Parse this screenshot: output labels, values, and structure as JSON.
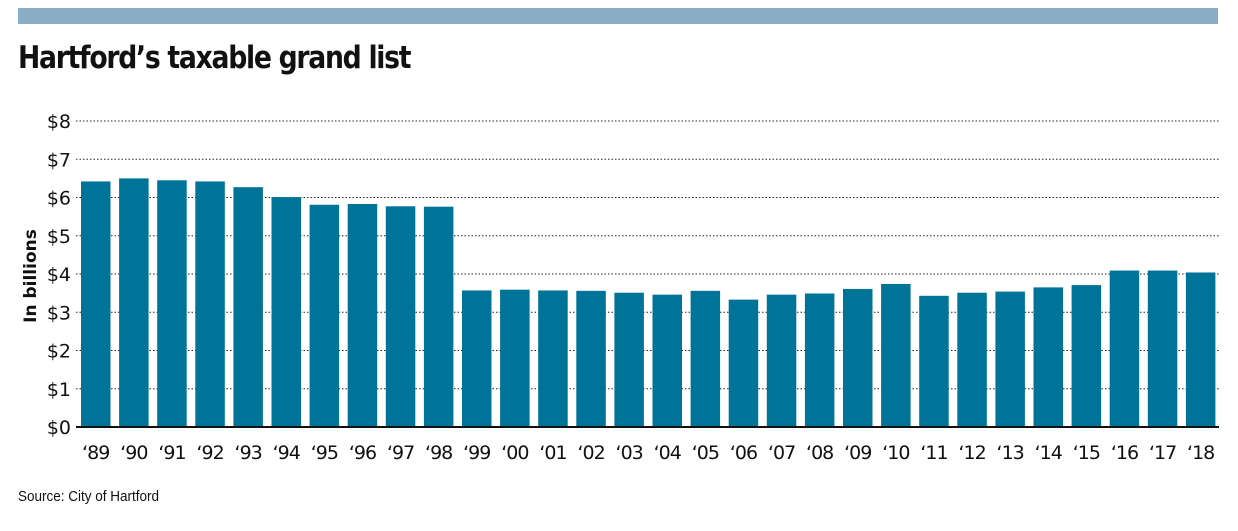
{
  "colors": {
    "top_bar": "#8aaec6",
    "bar": "#007399",
    "text": "#111111",
    "gridline": "#222222"
  },
  "chart_data": {
    "type": "bar",
    "title": "Hartford’s taxable grand list",
    "ylabel": "In billions",
    "xlabel": "",
    "categories": [
      "‘89",
      "‘90",
      "‘91",
      "‘92",
      "‘93",
      "‘94",
      "‘95",
      "‘96",
      "‘97",
      "‘98",
      "‘99",
      "‘00",
      "‘01",
      "‘02",
      "‘03",
      "‘04",
      "‘05",
      "‘06",
      "‘07",
      "‘08",
      "‘09",
      "‘10",
      "‘11",
      "‘12",
      "‘13",
      "‘14",
      "‘15",
      "‘16",
      "‘17",
      "‘18"
    ],
    "values": [
      6.42,
      6.5,
      6.45,
      6.42,
      6.27,
      6.01,
      5.81,
      5.83,
      5.77,
      5.76,
      3.57,
      3.59,
      3.57,
      3.56,
      3.51,
      3.46,
      3.56,
      3.33,
      3.46,
      3.49,
      3.61,
      3.74,
      3.43,
      3.51,
      3.54,
      3.65,
      3.71,
      4.09,
      4.09,
      4.04
    ],
    "ylim": [
      0,
      8
    ],
    "yticks": [
      0,
      1,
      2,
      3,
      4,
      5,
      6,
      7,
      8
    ],
    "ytick_labels": [
      "$0",
      "$1",
      "$2",
      "$3",
      "$4",
      "$5",
      "$6",
      "$7",
      "$8"
    ],
    "grid": true,
    "legend": "none"
  },
  "source": "Source: City of Hartford"
}
